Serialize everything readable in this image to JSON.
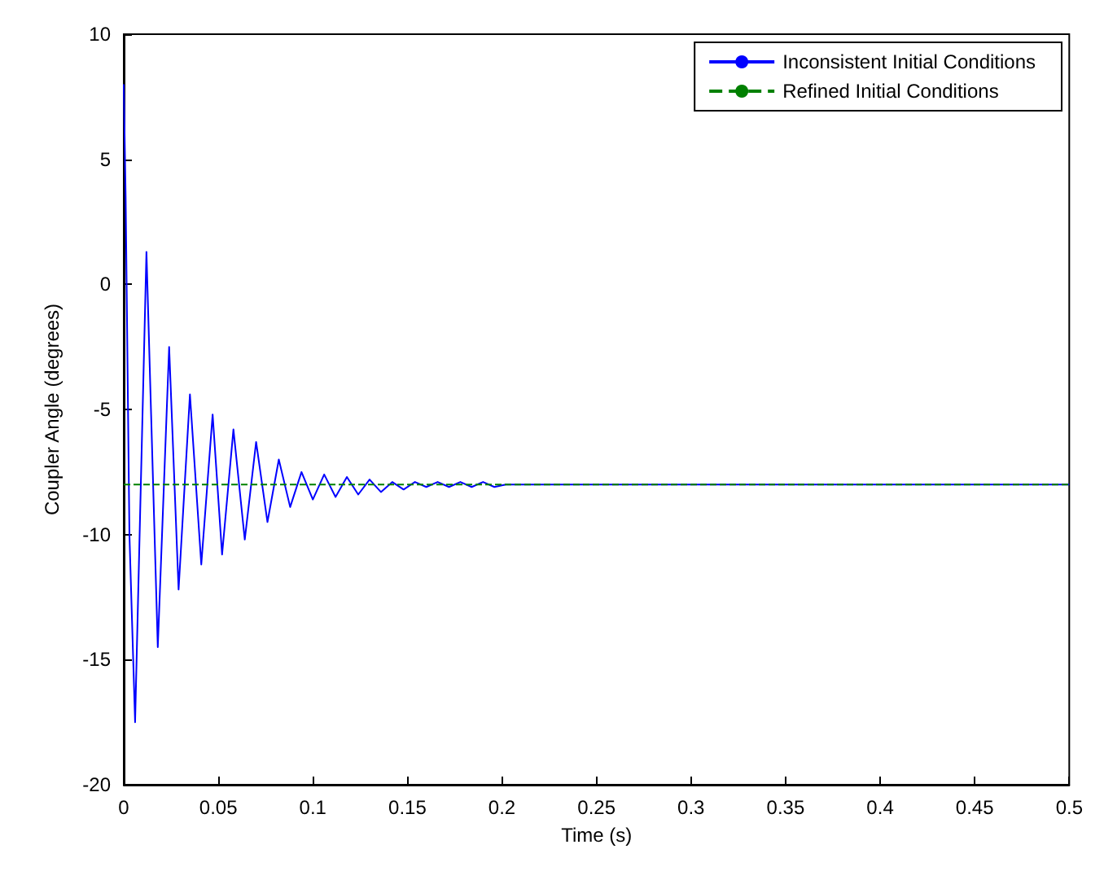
{
  "chart_data": {
    "type": "line",
    "xlabel": "Time (s)",
    "ylabel": "Coupler Angle (degrees)",
    "xlim": [
      0,
      0.5
    ],
    "xticks": [
      0,
      0.05,
      0.1,
      0.15,
      0.2,
      0.25,
      0.3,
      0.35,
      0.4,
      0.45,
      0.5
    ],
    "ylim": [
      -20,
      10
    ],
    "yticks": [
      -20,
      -15,
      -10,
      -5,
      0,
      5,
      10
    ],
    "grid": false,
    "legend": "top right",
    "marker": "none",
    "series": [
      {
        "name": "Inconsistent Initial Conditions",
        "color": "#0000ff",
        "line_style": "solid",
        "x": [
          0,
          0.001,
          0.003,
          0.006,
          0.012,
          0.018,
          0.024,
          0.029,
          0.035,
          0.041,
          0.047,
          0.052,
          0.058,
          0.064,
          0.07,
          0.076,
          0.082,
          0.088,
          0.094,
          0.1,
          0.106,
          0.112,
          0.118,
          0.124,
          0.13,
          0.136,
          0.142,
          0.148,
          0.154,
          0.16,
          0.166,
          0.172,
          0.178,
          0.184,
          0.19,
          0.196,
          0.202,
          0.21,
          0.5
        ],
        "values": [
          8,
          3.5,
          -10,
          -17.5,
          1.3,
          -14.5,
          -2.5,
          -12.2,
          -4.4,
          -11.2,
          -5.2,
          -10.8,
          -5.8,
          -10.2,
          -6.3,
          -9.5,
          -7,
          -8.9,
          -7.5,
          -8.6,
          -7.6,
          -8.5,
          -7.7,
          -8.4,
          -7.8,
          -8.3,
          -7.9,
          -8.2,
          -7.9,
          -8.1,
          -7.9,
          -8.1,
          -7.9,
          -8.1,
          -7.9,
          -8.1,
          -8,
          -8,
          -8
        ]
      },
      {
        "name": "Refined Initial Conditions",
        "color": "#008000",
        "line_style": "dashed",
        "x": [
          0,
          0.5
        ],
        "values": [
          -8,
          -8
        ]
      }
    ]
  }
}
